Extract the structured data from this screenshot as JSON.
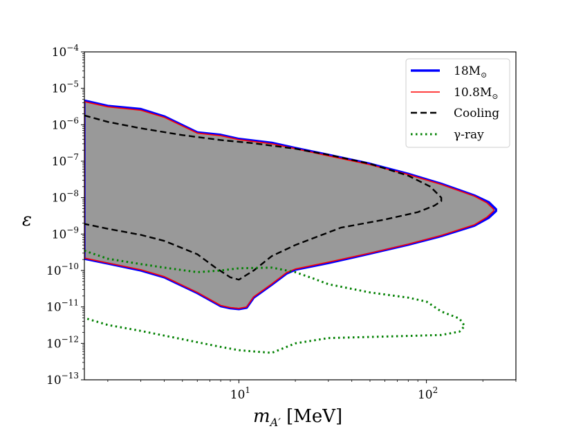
{
  "chart_data": {
    "type": "line",
    "xscale": "log",
    "yscale": "log",
    "xlim": [
      1.5,
      300
    ],
    "ylim": [
      1e-13,
      0.0001
    ],
    "xlabel": "m_{A'} [MeV]",
    "xlabel_main": "m",
    "xlabel_sub": "A′",
    "xlabel_unit": " [MeV]",
    "ylabel": "ε",
    "x_ticks": [
      {
        "value": 10,
        "base": "10",
        "exp": "1"
      },
      {
        "value": 100,
        "base": "10",
        "exp": "2"
      }
    ],
    "y_ticks": [
      {
        "value": 1e-13,
        "base": "10",
        "exp": "−13"
      },
      {
        "value": 1e-12,
        "base": "10",
        "exp": "−12"
      },
      {
        "value": 1e-11,
        "base": "10",
        "exp": "−11"
      },
      {
        "value": 1e-10,
        "base": "10",
        "exp": "−10"
      },
      {
        "value": 1e-09,
        "base": "10",
        "exp": "−9"
      },
      {
        "value": 1e-08,
        "base": "10",
        "exp": "−8"
      },
      {
        "value": 1e-07,
        "base": "10",
        "exp": "−7"
      },
      {
        "value": 1e-06,
        "base": "10",
        "exp": "−6"
      },
      {
        "value": 1e-05,
        "base": "10",
        "exp": "−5"
      },
      {
        "value": 0.0001,
        "base": "10",
        "exp": "−4"
      }
    ],
    "fill_color": "#999999",
    "series": [
      {
        "name": "18M_sun",
        "label_main": "18M",
        "label_sub": "⊙",
        "color": "#0000ff",
        "style": "solid",
        "points": [
          [
            1.5,
            4.6e-06
          ],
          [
            2,
            3.3e-06
          ],
          [
            3,
            2.7e-06
          ],
          [
            4,
            1.7e-06
          ],
          [
            6,
            6.2e-07
          ],
          [
            8,
            5.3e-07
          ],
          [
            10,
            4.1e-07
          ],
          [
            15,
            3.2e-07
          ],
          [
            20,
            2.3e-07
          ],
          [
            30,
            1.5e-07
          ],
          [
            50,
            8.5e-08
          ],
          [
            80,
            4.5e-08
          ],
          [
            120,
            2.4e-08
          ],
          [
            180,
            1.15e-08
          ],
          [
            215,
            7.5e-09
          ],
          [
            235,
            4.8e-09
          ],
          [
            235,
            4.3e-09
          ],
          [
            215,
            2.8e-09
          ],
          [
            180,
            1.7e-09
          ],
          [
            120,
            8.8e-10
          ],
          [
            80,
            5.1e-10
          ],
          [
            50,
            2.9e-10
          ],
          [
            30,
            1.6e-10
          ],
          [
            20,
            1.05e-10
          ],
          [
            18,
            8.3e-11
          ],
          [
            15,
            4.1e-11
          ],
          [
            12,
            1.8e-11
          ],
          [
            11,
            9.5e-12
          ],
          [
            10,
            8.7e-12
          ],
          [
            9,
            9.2e-12
          ],
          [
            8,
            1.05e-11
          ],
          [
            6,
            2.4e-11
          ],
          [
            4,
            6.5e-11
          ],
          [
            3,
            1e-10
          ],
          [
            2,
            1.55e-10
          ],
          [
            1.5,
            2.1e-10
          ]
        ]
      },
      {
        "name": "10.8M_sun",
        "label_main": "10.8M",
        "label_sub": "⊙",
        "color": "#ff0000",
        "style": "solid",
        "points": [
          [
            1.5,
            4.3e-06
          ],
          [
            2,
            3.1e-06
          ],
          [
            3,
            2.5e-06
          ],
          [
            4,
            1.6e-06
          ],
          [
            6,
            5.9e-07
          ],
          [
            8,
            5e-07
          ],
          [
            10,
            3.9e-07
          ],
          [
            15,
            3e-07
          ],
          [
            20,
            2.2e-07
          ],
          [
            30,
            1.4e-07
          ],
          [
            50,
            8e-08
          ],
          [
            80,
            4.3e-08
          ],
          [
            120,
            2.3e-08
          ],
          [
            180,
            1.1e-08
          ],
          [
            210,
            7.2e-09
          ],
          [
            228,
            4.8e-09
          ],
          [
            228,
            4.3e-09
          ],
          [
            210,
            2.9e-09
          ],
          [
            180,
            1.8e-09
          ],
          [
            120,
            9.2e-10
          ],
          [
            80,
            5.3e-10
          ],
          [
            50,
            3e-10
          ],
          [
            30,
            1.7e-10
          ],
          [
            20,
            1.1e-10
          ],
          [
            18,
            8.8e-11
          ],
          [
            15,
            4.3e-11
          ],
          [
            12,
            1.9e-11
          ],
          [
            11,
            1e-11
          ],
          [
            10,
            9.1e-12
          ],
          [
            9,
            9.6e-12
          ],
          [
            8,
            1.1e-11
          ],
          [
            6,
            2.5e-11
          ],
          [
            4,
            6.8e-11
          ],
          [
            3,
            1.05e-10
          ],
          [
            2,
            1.6e-10
          ],
          [
            1.5,
            2.2e-10
          ]
        ]
      },
      {
        "name": "Cooling",
        "label_main": "Cooling",
        "label_sub": "",
        "color": "#000000",
        "style": "dashed",
        "points": [
          [
            1.5,
            1.8e-06
          ],
          [
            2,
            1.2e-06
          ],
          [
            3,
            8e-07
          ],
          [
            5,
            5.2e-07
          ],
          [
            8,
            3.8e-07
          ],
          [
            12,
            3.1e-07
          ],
          [
            20,
            2.2e-07
          ],
          [
            30,
            1.5e-07
          ],
          [
            50,
            8.5e-08
          ],
          [
            80,
            4e-08
          ],
          [
            105,
            2e-08
          ],
          [
            120,
            1e-08
          ],
          [
            120,
            8e-09
          ],
          [
            110,
            6e-09
          ],
          [
            90,
            4e-09
          ],
          [
            60,
            2.5e-09
          ],
          [
            35,
            1.5e-09
          ],
          [
            20,
            5e-10
          ],
          [
            15,
            2.5e-10
          ],
          [
            12,
            1e-10
          ],
          [
            10,
            5.6e-11
          ],
          [
            9,
            6.5e-11
          ],
          [
            7.5,
            1.2e-10
          ],
          [
            6,
            2.8e-10
          ],
          [
            4,
            6.5e-10
          ],
          [
            3,
            9.5e-10
          ],
          [
            2,
            1.4e-09
          ],
          [
            1.5,
            1.9e-09
          ]
        ]
      },
      {
        "name": "gamma-ray",
        "label_main": "γ-ray",
        "label_sub": "",
        "color": "#008000",
        "style": "dotted",
        "points": [
          [
            1.5,
            3.5e-10
          ],
          [
            2,
            2.1e-10
          ],
          [
            3,
            1.5e-10
          ],
          [
            4,
            1.2e-10
          ],
          [
            6,
            9e-11
          ],
          [
            8,
            1e-10
          ],
          [
            10,
            1.15e-10
          ],
          [
            15,
            1.2e-10
          ],
          [
            20,
            9e-11
          ],
          [
            25,
            6e-11
          ],
          [
            30,
            4.2e-11
          ],
          [
            50,
            2.5e-11
          ],
          [
            80,
            1.8e-11
          ],
          [
            100,
            1.4e-11
          ],
          [
            120,
            7.5e-12
          ],
          [
            150,
            4.8e-12
          ],
          [
            160,
            3e-12
          ],
          [
            150,
            2.1e-12
          ],
          [
            120,
            1.7e-12
          ],
          [
            80,
            1.6e-12
          ],
          [
            50,
            1.5e-12
          ],
          [
            30,
            1.4e-12
          ],
          [
            20,
            1e-12
          ],
          [
            15,
            5.5e-13
          ],
          [
            12,
            6e-13
          ],
          [
            10,
            6.5e-13
          ],
          [
            8,
            8e-13
          ],
          [
            5,
            1.3e-12
          ],
          [
            3,
            2.2e-12
          ],
          [
            2,
            3.2e-12
          ],
          [
            1.5,
            5e-12
          ]
        ]
      }
    ]
  }
}
